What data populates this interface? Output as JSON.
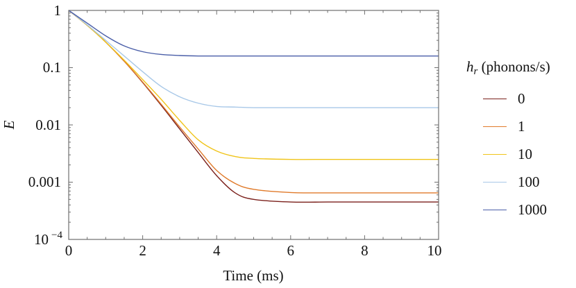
{
  "chart_data": {
    "type": "line",
    "title": "",
    "xlabel": "Time (ms)",
    "ylabel": "E",
    "yscale": "log",
    "xlim": [
      0,
      10
    ],
    "ylim": [
      0.0001,
      1
    ],
    "xticks": [
      "0",
      "2",
      "4",
      "6",
      "8",
      "10"
    ],
    "yticks": [
      "1",
      "0.1",
      "0.01",
      "0.001",
      "10^-4"
    ],
    "grid": false,
    "legend_title": "h_r (phonons/s)",
    "legend_position": "right",
    "x": [
      0,
      0.5,
      1,
      1.5,
      2,
      2.5,
      3,
      3.5,
      4,
      4.5,
      5,
      6,
      7,
      8,
      9,
      10
    ],
    "series": [
      {
        "name": "0",
        "color": "#7a1f1a",
        "values": [
          1,
          0.55,
          0.28,
          0.13,
          0.055,
          0.022,
          0.0085,
          0.0033,
          0.0013,
          0.00065,
          0.0005,
          0.00045,
          0.00045,
          0.00045,
          0.00045,
          0.00045
        ]
      },
      {
        "name": "1",
        "color": "#e07a2a",
        "values": [
          1,
          0.55,
          0.28,
          0.13,
          0.056,
          0.023,
          0.0092,
          0.0038,
          0.0016,
          0.00095,
          0.00075,
          0.00066,
          0.00065,
          0.00065,
          0.00065,
          0.00065
        ]
      },
      {
        "name": "10",
        "color": "#f0c419",
        "values": [
          1,
          0.55,
          0.28,
          0.135,
          0.062,
          0.028,
          0.012,
          0.0055,
          0.0035,
          0.0028,
          0.0026,
          0.0025,
          0.0025,
          0.0025,
          0.0025,
          0.0025
        ]
      },
      {
        "name": "100",
        "color": "#a8c8e8",
        "values": [
          1,
          0.56,
          0.3,
          0.16,
          0.085,
          0.047,
          0.031,
          0.024,
          0.021,
          0.0205,
          0.02,
          0.02,
          0.02,
          0.02,
          0.02,
          0.02
        ]
      },
      {
        "name": "1000",
        "color": "#4a5ea8",
        "values": [
          1,
          0.6,
          0.36,
          0.24,
          0.19,
          0.17,
          0.163,
          0.16,
          0.16,
          0.16,
          0.16,
          0.16,
          0.16,
          0.16,
          0.16,
          0.16
        ]
      }
    ]
  },
  "axes": {
    "xlabel": "Time (ms)",
    "ylabel": "E",
    "xticks": [
      "0",
      "2",
      "4",
      "6",
      "8",
      "10"
    ],
    "yticks": [
      "1",
      "0.1",
      "0.01",
      "0.001"
    ],
    "ytick_min_base": "10",
    "ytick_min_exp": "−4"
  },
  "legend": {
    "title_var": "h",
    "title_sub": "r",
    "title_rest": " (phonons/s)",
    "items": [
      {
        "label": "0",
        "color": "#7a1f1a"
      },
      {
        "label": "1",
        "color": "#e07a2a"
      },
      {
        "label": "10",
        "color": "#f0c419"
      },
      {
        "label": "100",
        "color": "#a8c8e8"
      },
      {
        "label": "1000",
        "color": "#4a5ea8"
      }
    ]
  }
}
